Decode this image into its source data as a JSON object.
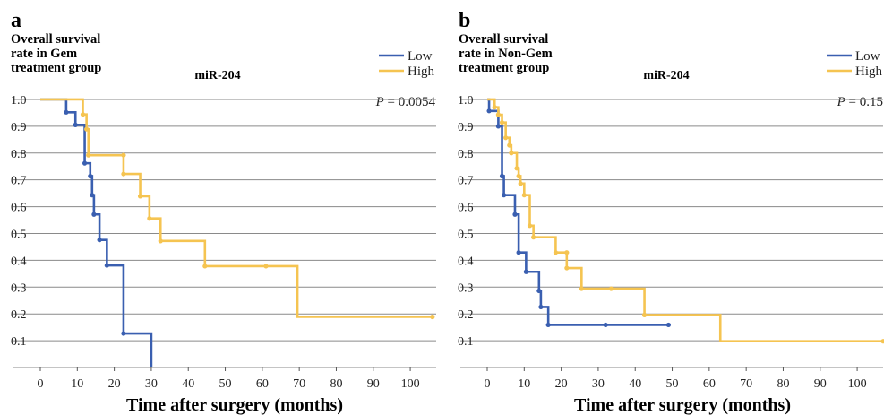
{
  "chart_data": [
    {
      "type": "line",
      "panel_label": "a",
      "ylabel": [
        "Overall survival",
        "rate in Gem",
        "treatment group"
      ],
      "title": "miR-204",
      "xlabel": "Time after surgery (months)",
      "p_value": {
        "prefix": "P",
        "text": " = 0.0054"
      },
      "x_ticks": [
        "0",
        "10",
        "20",
        "30",
        "40",
        "50",
        "60",
        "70",
        "80",
        "90",
        "100"
      ],
      "y_ticks": [
        "1.0",
        "0.9",
        "0.8",
        "0.7",
        "0.6",
        "0.5",
        "0.4",
        "0.3",
        "0.2",
        "0.1"
      ],
      "xlim": [
        0,
        107
      ],
      "ylim": [
        0,
        1.05
      ],
      "grid": true,
      "legend_position": "top-right",
      "series": [
        {
          "name": "Low",
          "color": "#3a5fb0",
          "steps": [
            [
              0,
              1.0
            ],
            [
              7,
              0.952
            ],
            [
              9.5,
              0.905
            ],
            [
              12,
              0.762
            ],
            [
              13.5,
              0.714
            ],
            [
              14,
              0.643
            ],
            [
              14.5,
              0.571
            ],
            [
              16,
              0.476
            ],
            [
              18,
              0.381
            ],
            [
              22.5,
              0.127
            ],
            [
              30,
              0.0
            ]
          ],
          "censored": [
            [
              7,
              0.952
            ],
            [
              9.5,
              0.905
            ],
            [
              12,
              0.762
            ],
            [
              13.5,
              0.714
            ],
            [
              14,
              0.643
            ],
            [
              14.5,
              0.571
            ],
            [
              16,
              0.476
            ],
            [
              18,
              0.381
            ],
            [
              22.5,
              0.127
            ]
          ],
          "end_x": 30
        },
        {
          "name": "High",
          "color": "#f5c451",
          "steps": [
            [
              0,
              1.0
            ],
            [
              11.5,
              0.944
            ],
            [
              12.5,
              0.889
            ],
            [
              13,
              0.792
            ],
            [
              22.5,
              0.722
            ],
            [
              27,
              0.639
            ],
            [
              29.5,
              0.556
            ],
            [
              32.5,
              0.472
            ],
            [
              44.5,
              0.378
            ],
            [
              69.5,
              0.189
            ]
          ],
          "censored": [
            [
              11.5,
              0.944
            ],
            [
              12.5,
              0.889
            ],
            [
              13,
              0.792
            ],
            [
              22.5,
              0.792
            ],
            [
              22.5,
              0.722
            ],
            [
              27,
              0.639
            ],
            [
              29.5,
              0.556
            ],
            [
              32.5,
              0.472
            ],
            [
              44.5,
              0.378
            ],
            [
              61,
              0.378
            ],
            [
              106,
              0.189
            ]
          ],
          "end_x": 106
        }
      ]
    },
    {
      "type": "line",
      "panel_label": "b",
      "ylabel": [
        "Overall survival",
        "rate in Non-Gem",
        "treatment group"
      ],
      "title": "miR-204",
      "xlabel": "Time after surgery (months)",
      "p_value": {
        "prefix": "P",
        "text": " = 0.15"
      },
      "x_ticks": [
        "0",
        "10",
        "20",
        "30",
        "40",
        "50",
        "60",
        "70",
        "80",
        "90",
        "100"
      ],
      "y_ticks": [
        "1.0",
        "0.9",
        "0.8",
        "0.7",
        "0.6",
        "0.5",
        "0.4",
        "0.3",
        "0.2",
        "0.1"
      ],
      "xlim": [
        0,
        107
      ],
      "ylim": [
        0,
        1.05
      ],
      "grid": true,
      "legend_position": "top-right",
      "series": [
        {
          "name": "Low",
          "color": "#3a5fb0",
          "steps": [
            [
              0,
              1.0
            ],
            [
              0.5,
              0.957
            ],
            [
              3,
              0.9
            ],
            [
              4,
              0.714
            ],
            [
              4.5,
              0.643
            ],
            [
              7.5,
              0.571
            ],
            [
              8.5,
              0.429
            ],
            [
              10.5,
              0.357
            ],
            [
              14,
              0.286
            ],
            [
              14.5,
              0.226
            ],
            [
              16.5,
              0.159
            ]
          ],
          "censored": [
            [
              0.5,
              0.957
            ],
            [
              3,
              0.9
            ],
            [
              4,
              0.714
            ],
            [
              4.5,
              0.643
            ],
            [
              7.5,
              0.571
            ],
            [
              8.5,
              0.429
            ],
            [
              10.5,
              0.357
            ],
            [
              14,
              0.286
            ],
            [
              14.5,
              0.226
            ],
            [
              16.5,
              0.159
            ],
            [
              32,
              0.159
            ],
            [
              49,
              0.159
            ]
          ],
          "end_x": 49
        },
        {
          "name": "High",
          "color": "#f5c451",
          "steps": [
            [
              0,
              1.0
            ],
            [
              2,
              0.971
            ],
            [
              3,
              0.943
            ],
            [
              4,
              0.914
            ],
            [
              5,
              0.857
            ],
            [
              6,
              0.829
            ],
            [
              6.5,
              0.8
            ],
            [
              8,
              0.743
            ],
            [
              8.5,
              0.714
            ],
            [
              9,
              0.686
            ],
            [
              10,
              0.643
            ],
            [
              11.5,
              0.529
            ],
            [
              12.5,
              0.486
            ],
            [
              18.5,
              0.429
            ],
            [
              21.5,
              0.371
            ],
            [
              25.5,
              0.294
            ],
            [
              42.5,
              0.196
            ],
            [
              63,
              0.098
            ]
          ],
          "censored": [
            [
              2,
              0.971
            ],
            [
              3,
              0.943
            ],
            [
              4,
              0.914
            ],
            [
              5,
              0.857
            ],
            [
              6,
              0.829
            ],
            [
              6.5,
              0.8
            ],
            [
              8,
              0.743
            ],
            [
              8.5,
              0.714
            ],
            [
              9,
              0.686
            ],
            [
              10,
              0.643
            ],
            [
              11.5,
              0.529
            ],
            [
              12.5,
              0.486
            ],
            [
              18.5,
              0.429
            ],
            [
              21.5,
              0.429
            ],
            [
              21.5,
              0.371
            ],
            [
              25.5,
              0.294
            ],
            [
              33.5,
              0.294
            ],
            [
              42.5,
              0.196
            ],
            [
              107,
              0.098
            ]
          ],
          "end_x": 107
        }
      ]
    }
  ]
}
